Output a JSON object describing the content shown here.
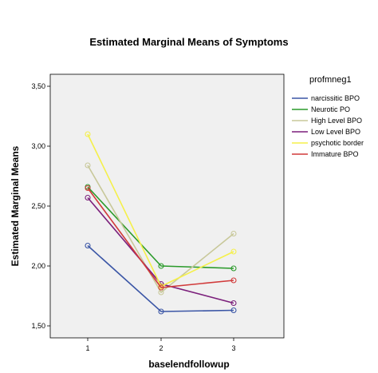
{
  "chart_data": {
    "type": "line",
    "title": "Estimated Marginal Means of Symptoms",
    "xlabel": "baselendfollowup",
    "ylabel": "Estimated Marginal Means",
    "x": [
      "1",
      "2",
      "3"
    ],
    "ylim": [
      1.4,
      3.6
    ],
    "yticks": [
      "1,50",
      "2,00",
      "2,50",
      "3,00",
      "3,50"
    ],
    "ytick_values": [
      1.5,
      2.0,
      2.5,
      3.0,
      3.5
    ],
    "legend_title": "profmneg1",
    "legend_position": "right",
    "grid": false,
    "series": [
      {
        "name": "narcissitic BPO",
        "color": "#3b56a6",
        "values": [
          2.17,
          1.62,
          1.63
        ]
      },
      {
        "name": "Neurotic PO",
        "color": "#2a9a2a",
        "values": [
          2.66,
          2.0,
          1.98
        ]
      },
      {
        "name": "High Level BPO",
        "color": "#c8c89a",
        "values": [
          2.84,
          1.78,
          2.27
        ]
      },
      {
        "name": "Low Level BPO",
        "color": "#7b1f7b",
        "values": [
          2.57,
          1.85,
          1.69
        ]
      },
      {
        "name": "psychotic border",
        "color": "#f5f04a",
        "values": [
          3.1,
          1.83,
          2.12
        ]
      },
      {
        "name": "Immature BPO",
        "color": "#d13a3a",
        "values": [
          2.65,
          1.82,
          1.88
        ]
      }
    ]
  }
}
